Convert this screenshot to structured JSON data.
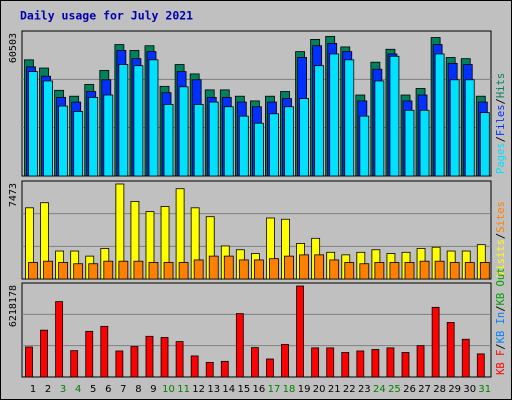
{
  "chart_data": {
    "type": "bar",
    "title": "Daily usage for July 2021",
    "categories": [
      "1",
      "2",
      "3",
      "4",
      "5",
      "6",
      "7",
      "8",
      "9",
      "10",
      "11",
      "12",
      "13",
      "14",
      "15",
      "16",
      "17",
      "18",
      "19",
      "20",
      "21",
      "22",
      "23",
      "24",
      "25",
      "26",
      "27",
      "28",
      "29",
      "30",
      "31"
    ],
    "weekend_days": [
      "3",
      "4",
      "10",
      "11",
      "17",
      "18",
      "24",
      "25",
      "31"
    ],
    "panels": [
      {
        "id": "hits-files-pages",
        "max_label": "60503",
        "ylim": [
          0,
          60503
        ],
        "legend": [
          {
            "text": "Pages",
            "color": "#00e0ff"
          },
          {
            "text": "/",
            "color": "#000000"
          },
          {
            "text": "Files",
            "color": "#0030ff"
          },
          {
            "text": "/",
            "color": "#000000"
          },
          {
            "text": "Hits",
            "color": "#00805c"
          }
        ],
        "series": [
          {
            "name": "Hits",
            "color": "#00805c",
            "values": [
              49500,
              46000,
              36500,
              34000,
              39000,
              45000,
              56000,
              53500,
              55500,
              38200,
              47500,
              43500,
              36700,
              36700,
              34000,
              32000,
              34000,
              36000,
              53000,
              58200,
              59500,
              55000,
              34500,
              48500,
              54000,
              34500,
              37300,
              59000,
              50500,
              50000,
              34000
            ]
          },
          {
            "name": "Files",
            "color": "#0030ff",
            "values": [
              46500,
              42500,
              33500,
              31500,
              36000,
              41000,
              53500,
              50000,
              53000,
              35500,
              44500,
              41000,
              33500,
              33500,
              31500,
              29500,
              31500,
              33000,
              50500,
              55500,
              56500,
              53000,
              32000,
              45500,
              52000,
              32000,
              34500,
              56000,
              48000,
              47500,
              31500
            ]
          },
          {
            "name": "Pages",
            "color": "#00e0ff",
            "values": [
              44500,
              40500,
              29800,
              27500,
              33500,
              34500,
              47500,
              47000,
              49500,
              30500,
              38000,
              30500,
              31500,
              29500,
              25500,
              22500,
              26500,
              29500,
              33000,
              47000,
              52000,
              49500,
              25500,
              40500,
              51000,
              28000,
              28000,
              52000,
              41000,
              41000,
              27000
            ]
          }
        ]
      },
      {
        "id": "visits-sites",
        "max_label": "7473",
        "ylim": [
          0,
          7473
        ],
        "legend": [
          {
            "text": "Visits",
            "color": "#ffff00"
          },
          {
            "text": "/",
            "color": "#000000"
          },
          {
            "text": "Sites",
            "color": "#ff8000"
          }
        ],
        "series": [
          {
            "name": "Visits",
            "color": "#ffff00",
            "values": [
              5600,
              6000,
              2200,
              2200,
              1800,
              2400,
              7473,
              6100,
              5300,
              5700,
              7100,
              5600,
              4900,
              2600,
              2300,
              2000,
              4800,
              4700,
              2800,
              3200,
              2100,
              1900,
              2100,
              2300,
              2000,
              2100,
              2400,
              2500,
              2200,
              2200,
              2700
            ]
          },
          {
            "name": "Sites",
            "color": "#ff8000",
            "values": [
              1300,
              1400,
              1300,
              1200,
              1200,
              1400,
              1400,
              1400,
              1300,
              1300,
              1300,
              1500,
              1800,
              1800,
              1500,
              1500,
              1600,
              1800,
              1900,
              1900,
              1500,
              1300,
              1200,
              1300,
              1300,
              1300,
              1400,
              1400,
              1300,
              1300,
              1300
            ]
          }
        ]
      },
      {
        "id": "kbytes",
        "max_label": "6218178",
        "ylim": [
          0,
          6218178
        ],
        "legend": [
          {
            "text": "KB F",
            "color": "#ff0000"
          },
          {
            "text": "/",
            "color": "#000000"
          },
          {
            "text": "KB In",
            "color": "#0080ff"
          },
          {
            "text": "/",
            "color": "#000000"
          },
          {
            "text": "KB Out",
            "color": "#00a000"
          }
        ],
        "series": [
          {
            "name": "KB F",
            "color": "#ff0000",
            "values": [
              2050000,
              3200000,
              5150000,
              1800000,
              3120000,
              3460000,
              1780000,
              2080000,
              2780000,
              2700000,
              2420000,
              1440000,
              1000000,
              1070000,
              4330000,
              2010000,
              1230000,
              2230000,
              6218178,
              1990000,
              1990000,
              1680000,
              1780000,
              1880000,
              1990000,
              1680000,
              2140000,
              4760000,
              3730000,
              2580000,
              1580000
            ]
          }
        ]
      }
    ]
  }
}
